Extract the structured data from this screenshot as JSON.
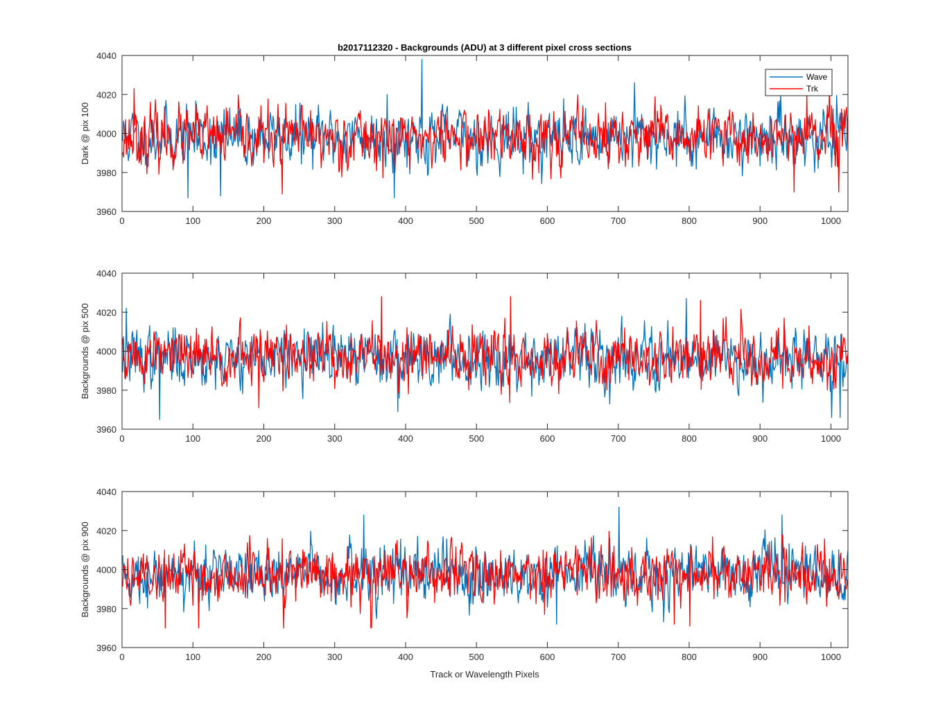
{
  "figure": {
    "title": "b2017112320 - Backgrounds (ADU) at 3 different pixel cross sections",
    "xlabel": "Track or Wavelength Pixels",
    "legend": {
      "placement": "top-right",
      "entries": [
        {
          "name": "Wave",
          "color": "#0072BD"
        },
        {
          "name": "Trk",
          "color": "#FF0000"
        }
      ]
    }
  },
  "chart_data": [
    {
      "type": "line",
      "title": "b2017112320 - Backgrounds (ADU) at 3 different pixel cross sections",
      "xlabel": "",
      "ylabel": "Dark @ pix 100",
      "xlim": [
        0,
        1024
      ],
      "ylim": [
        3960,
        4040
      ],
      "xticks": [
        0,
        100,
        200,
        300,
        400,
        500,
        600,
        700,
        800,
        900,
        1000
      ],
      "yticks": [
        3960,
        3980,
        4000,
        4020,
        4040
      ],
      "grid": false,
      "legend": "top-right",
      "n_points": 1024,
      "mean": 3998,
      "spread": 7,
      "seeds": [
        11,
        23
      ],
      "spikes": [
        {
          "series": 0,
          "x": 422,
          "y": 4038
        },
        {
          "series": 0,
          "x": 373,
          "y": 4020
        },
        {
          "series": 0,
          "x": 722,
          "y": 4026
        },
        {
          "series": 0,
          "x": 92,
          "y": 3967
        },
        {
          "series": 0,
          "x": 138,
          "y": 3968
        },
        {
          "series": 0,
          "x": 383,
          "y": 3967
        },
        {
          "series": 1,
          "x": 16,
          "y": 4023
        },
        {
          "series": 1,
          "x": 225,
          "y": 3969
        },
        {
          "series": 1,
          "x": 947,
          "y": 3970
        },
        {
          "series": 1,
          "x": 1010,
          "y": 3970
        },
        {
          "series": 1,
          "x": 965,
          "y": 4020
        }
      ],
      "series": [
        {
          "name": "Wave",
          "color": "#0072BD"
        },
        {
          "name": "Trk",
          "color": "#FF0000"
        }
      ]
    },
    {
      "type": "line",
      "xlabel": "",
      "ylabel": "Backgrounds @ pix 500",
      "xlim": [
        0,
        1024
      ],
      "ylim": [
        3960,
        4040
      ],
      "xticks": [
        0,
        100,
        200,
        300,
        400,
        500,
        600,
        700,
        800,
        900,
        1000
      ],
      "yticks": [
        3960,
        3980,
        4000,
        4020,
        4040
      ],
      "grid": false,
      "n_points": 1024,
      "mean": 3997,
      "spread": 7,
      "seeds": [
        37,
        51
      ],
      "spikes": [
        {
          "series": 0,
          "x": 5,
          "y": 4022
        },
        {
          "series": 0,
          "x": 52,
          "y": 3965
        },
        {
          "series": 0,
          "x": 388,
          "y": 3969
        },
        {
          "series": 0,
          "x": 795,
          "y": 4027
        },
        {
          "series": 0,
          "x": 1000,
          "y": 3966
        },
        {
          "series": 0,
          "x": 1012,
          "y": 3966
        },
        {
          "series": 1,
          "x": 365,
          "y": 4028
        },
        {
          "series": 1,
          "x": 547,
          "y": 4028
        },
        {
          "series": 1,
          "x": 815,
          "y": 4026
        },
        {
          "series": 1,
          "x": 192,
          "y": 3971
        }
      ],
      "series": [
        {
          "name": "Wave",
          "color": "#0072BD"
        },
        {
          "name": "Trk",
          "color": "#FF0000"
        }
      ]
    },
    {
      "type": "line",
      "xlabel": "Track or Wavelength Pixels",
      "ylabel": "Backgrounds @ pix 900",
      "xlim": [
        0,
        1024
      ],
      "ylim": [
        3960,
        4040
      ],
      "xticks": [
        0,
        100,
        200,
        300,
        400,
        500,
        600,
        700,
        800,
        900,
        1000
      ],
      "yticks": [
        3960,
        3980,
        4000,
        4020,
        4040
      ],
      "grid": false,
      "n_points": 1024,
      "mean": 3998,
      "spread": 7,
      "seeds": [
        73,
        89
      ],
      "spikes": [
        {
          "series": 0,
          "x": 340,
          "y": 4028
        },
        {
          "series": 0,
          "x": 700,
          "y": 4032
        },
        {
          "series": 0,
          "x": 930,
          "y": 4028
        },
        {
          "series": 0,
          "x": 612,
          "y": 3972
        },
        {
          "series": 1,
          "x": 60,
          "y": 3970
        },
        {
          "series": 1,
          "x": 107,
          "y": 3970
        },
        {
          "series": 1,
          "x": 227,
          "y": 3970
        },
        {
          "series": 1,
          "x": 350,
          "y": 3970
        },
        {
          "series": 1,
          "x": 778,
          "y": 3972
        },
        {
          "series": 1,
          "x": 800,
          "y": 3971
        }
      ],
      "series": [
        {
          "name": "Wave",
          "color": "#0072BD"
        },
        {
          "name": "Trk",
          "color": "#FF0000"
        }
      ]
    }
  ]
}
